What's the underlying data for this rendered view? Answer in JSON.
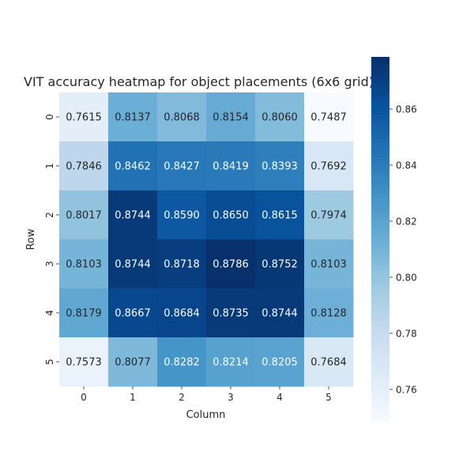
{
  "chart_data": {
    "type": "heatmap",
    "title": "VIT accuracy heatmap for object placements (6x6 grid)",
    "xlabel": "Column",
    "ylabel": "Row",
    "x_ticks": [
      "0",
      "1",
      "2",
      "3",
      "4",
      "5"
    ],
    "y_ticks": [
      "0",
      "1",
      "2",
      "3",
      "4",
      "5"
    ],
    "values": [
      [
        0.7615,
        0.8137,
        0.8068,
        0.8154,
        0.806,
        0.7487
      ],
      [
        0.7846,
        0.8462,
        0.8427,
        0.8419,
        0.8393,
        0.7692
      ],
      [
        0.8017,
        0.8744,
        0.859,
        0.865,
        0.8615,
        0.7974
      ],
      [
        0.8103,
        0.8744,
        0.8718,
        0.8786,
        0.8752,
        0.8103
      ],
      [
        0.8179,
        0.8667,
        0.8684,
        0.8735,
        0.8744,
        0.8128
      ],
      [
        0.7573,
        0.8077,
        0.8282,
        0.8214,
        0.8205,
        0.7684
      ]
    ],
    "value_format": "4 decimals",
    "colormap": "Blues",
    "vmin": 0.7487,
    "vmax": 0.8786,
    "colorbar_ticks": [
      0.76,
      0.78,
      0.8,
      0.82,
      0.84,
      0.86
    ],
    "colorbar_tick_labels": [
      "0.76",
      "0.78",
      "0.80",
      "0.82",
      "0.84",
      "0.86"
    ],
    "grid": false,
    "colorbar_position": "right"
  }
}
